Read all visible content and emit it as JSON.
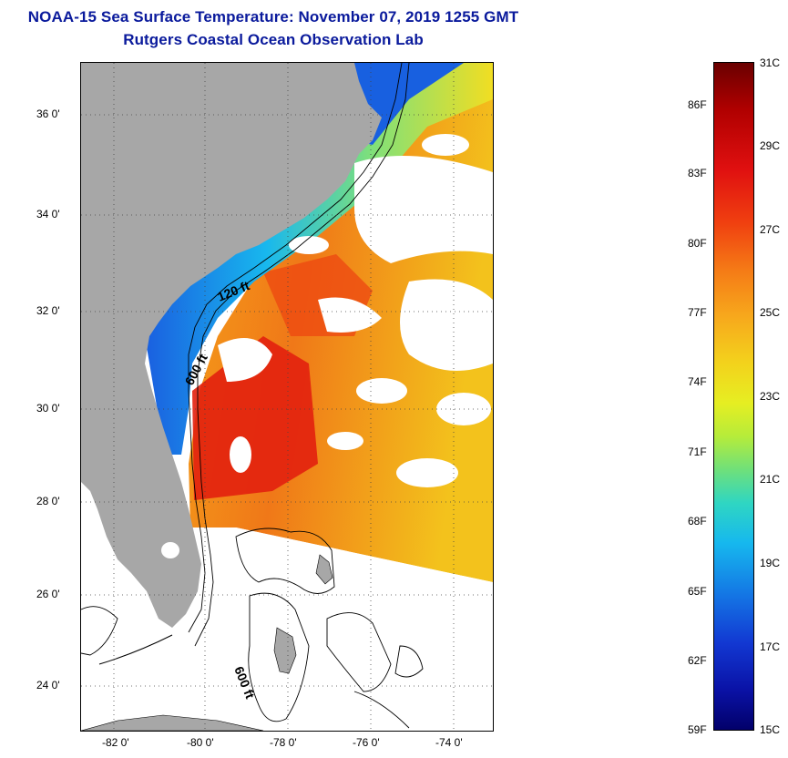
{
  "header": {
    "title_line1": "NOAA-15 Sea Surface Temperature:  November 07, 2019 1255 GMT",
    "title_line2": "Rutgers Coastal Ocean Observation Lab"
  },
  "map": {
    "lat_labels": [
      "36 0'",
      "34 0'",
      "32 0'",
      "30 0'",
      "28 0'",
      "26 0'",
      "24 0'"
    ],
    "lon_labels": [
      "-82 0'",
      "-80 0'",
      "-78 0'",
      "-76 0'",
      "-74 0'"
    ],
    "contour_labels": [
      "120 ft",
      "600 ft",
      "600 ft"
    ],
    "colors": {
      "land": "#a7a7a7",
      "no_data": "#ffffff"
    }
  },
  "colorbar": {
    "fahrenheit_labels": [
      "86F",
      "83F",
      "80F",
      "77F",
      "74F",
      "71F",
      "68F",
      "65F",
      "62F",
      "59F"
    ],
    "celsius_labels": [
      "31C",
      "29C",
      "27C",
      "25C",
      "23C",
      "21C",
      "19C",
      "17C",
      "15C"
    ]
  }
}
